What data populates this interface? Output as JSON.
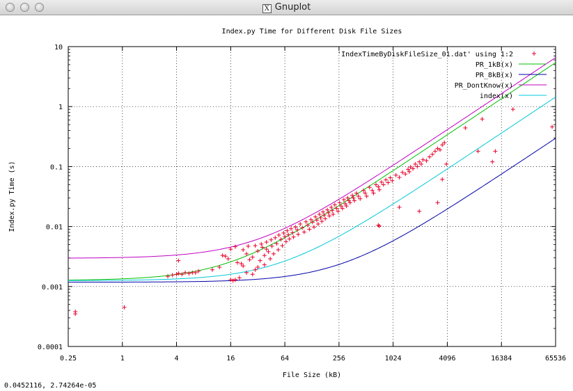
{
  "window": {
    "title": "Gnuplot",
    "icon": "x11-icon"
  },
  "status_readout": "0.0452116,  2.74264e-05",
  "chart_data": {
    "type": "scatter",
    "title": "Index.py Time for Different Disk File Sizes",
    "xlabel": "File Size (kB)",
    "ylabel": "Index.py Time (s)",
    "xscale": "log",
    "yscale": "log",
    "xlim": [
      0.25,
      65536
    ],
    "ylim": [
      0.0001,
      10
    ],
    "xticks": [
      "0.25",
      "1",
      "4",
      "16",
      "64",
      "256",
      "1024",
      "4096",
      "16384",
      "65536"
    ],
    "yticks": [
      "0.0001",
      "0.001",
      "0.01",
      "0.1",
      "1",
      "10"
    ],
    "grid": true,
    "legend_position": "top-right",
    "series": [
      {
        "name": "'IndexTimeByDiskFileSize_01.dat' using 1:2",
        "kind": "points",
        "color": "#e8002a",
        "points": [
          [
            0.3,
            0.00035
          ],
          [
            0.3,
            0.00038
          ],
          [
            1.05,
            0.00045
          ],
          [
            3.2,
            0.00148
          ],
          [
            3.6,
            0.00155
          ],
          [
            4.0,
            0.0016
          ],
          [
            4.2,
            0.00165
          ],
          [
            4.6,
            0.0016
          ],
          [
            5.0,
            0.0017
          ],
          [
            5.5,
            0.00165
          ],
          [
            6.0,
            0.0017
          ],
          [
            6.5,
            0.0017
          ],
          [
            7.0,
            0.0018
          ],
          [
            4.2,
            0.0027
          ],
          [
            10,
            0.0019
          ],
          [
            12,
            0.0021
          ],
          [
            13,
            0.0033
          ],
          [
            14,
            0.0032
          ],
          [
            15,
            0.0029
          ],
          [
            16,
            0.0042
          ],
          [
            16,
            0.0013
          ],
          [
            17,
            0.00125
          ],
          [
            18,
            0.0013
          ],
          [
            18,
            0.0046
          ],
          [
            19,
            0.0025
          ],
          [
            20,
            0.0014
          ],
          [
            21,
            0.0024
          ],
          [
            22,
            0.0022
          ],
          [
            22,
            0.0041
          ],
          [
            24,
            0.0017
          ],
          [
            24,
            0.0035
          ],
          [
            25,
            0.0047
          ],
          [
            26,
            0.0028
          ],
          [
            28,
            0.0016
          ],
          [
            28,
            0.0031
          ],
          [
            30,
            0.0048
          ],
          [
            30,
            0.0019
          ],
          [
            32,
            0.0021
          ],
          [
            32,
            0.0039
          ],
          [
            34,
            0.0027
          ],
          [
            35,
            0.0051
          ],
          [
            36,
            0.0045
          ],
          [
            38,
            0.0023
          ],
          [
            38,
            0.0033
          ],
          [
            40,
            0.0055
          ],
          [
            40,
            0.0042
          ],
          [
            42,
            0.0038
          ],
          [
            44,
            0.0029
          ],
          [
            45,
            0.006
          ],
          [
            46,
            0.0047
          ],
          [
            48,
            0.0035
          ],
          [
            50,
            0.0065
          ],
          [
            52,
            0.0052
          ],
          [
            54,
            0.0041
          ],
          [
            55,
            0.0072
          ],
          [
            58,
            0.0061
          ],
          [
            60,
            0.0048
          ],
          [
            62,
            0.0078
          ],
          [
            64,
            0.0068
          ],
          [
            66,
            0.0056
          ],
          [
            68,
            0.0085
          ],
          [
            70,
            0.0073
          ],
          [
            72,
            0.0062
          ],
          [
            75,
            0.0092
          ],
          [
            78,
            0.0079
          ],
          [
            80,
            0.0067
          ],
          [
            84,
            0.0098
          ],
          [
            88,
            0.0088
          ],
          [
            90,
            0.0074
          ],
          [
            95,
            0.011
          ],
          [
            100,
            0.0095
          ],
          [
            105,
            0.0081
          ],
          [
            110,
            0.012
          ],
          [
            115,
            0.0105
          ],
          [
            120,
            0.009
          ],
          [
            125,
            0.013
          ],
          [
            130,
            0.0118
          ],
          [
            135,
            0.0098
          ],
          [
            140,
            0.0145
          ],
          [
            145,
            0.0128
          ],
          [
            150,
            0.011
          ],
          [
            155,
            0.016
          ],
          [
            160,
            0.014
          ],
          [
            165,
            0.0122
          ],
          [
            170,
            0.0175
          ],
          [
            175,
            0.0155
          ],
          [
            180,
            0.0135
          ],
          [
            190,
            0.019
          ],
          [
            195,
            0.017
          ],
          [
            200,
            0.015
          ],
          [
            210,
            0.021
          ],
          [
            215,
            0.0185
          ],
          [
            220,
            0.016
          ],
          [
            230,
            0.023
          ],
          [
            240,
            0.02
          ],
          [
            250,
            0.018
          ],
          [
            260,
            0.025
          ],
          [
            270,
            0.022
          ],
          [
            280,
            0.02
          ],
          [
            290,
            0.028
          ],
          [
            300,
            0.024
          ],
          [
            310,
            0.022
          ],
          [
            320,
            0.03
          ],
          [
            330,
            0.027
          ],
          [
            340,
            0.025
          ],
          [
            360,
            0.033
          ],
          [
            370,
            0.03
          ],
          [
            380,
            0.027
          ],
          [
            400,
            0.036
          ],
          [
            420,
            0.032
          ],
          [
            440,
            0.029
          ],
          [
            480,
            0.04
          ],
          [
            500,
            0.036
          ],
          [
            520,
            0.032
          ],
          [
            560,
            0.045
          ],
          [
            600,
            0.04
          ],
          [
            620,
            0.036
          ],
          [
            660,
            0.05
          ],
          [
            700,
            0.046
          ],
          [
            720,
            0.041
          ],
          [
            760,
            0.055
          ],
          [
            800,
            0.05
          ],
          [
            850,
            0.06
          ],
          [
            900,
            0.054
          ],
          [
            950,
            0.065
          ],
          [
            1000,
            0.058
          ],
          [
            1100,
            0.072
          ],
          [
            1200,
            0.066
          ],
          [
            1300,
            0.08
          ],
          [
            1400,
            0.075
          ],
          [
            1500,
            0.09
          ],
          [
            1550,
            0.082
          ],
          [
            1600,
            0.098
          ],
          [
            1700,
            0.092
          ],
          [
            1800,
            0.11
          ],
          [
            1900,
            0.1
          ],
          [
            2000,
            0.12
          ],
          [
            2100,
            0.11
          ],
          [
            2200,
            0.13
          ],
          [
            2400,
            0.125
          ],
          [
            2600,
            0.145
          ],
          [
            2800,
            0.16
          ],
          [
            3000,
            0.18
          ],
          [
            3200,
            0.2
          ],
          [
            3400,
            0.19
          ],
          [
            3600,
            0.23
          ],
          [
            3800,
            0.25
          ],
          [
            700,
            0.0105
          ],
          [
            720,
            0.0102
          ],
          [
            1200,
            0.021
          ],
          [
            2000,
            0.018
          ],
          [
            3200,
            0.025
          ],
          [
            3600,
            0.061
          ],
          [
            4000,
            0.11
          ],
          [
            6500,
            0.44
          ],
          [
            9000,
            0.18
          ],
          [
            10000,
            0.62
          ],
          [
            13000,
            0.12
          ],
          [
            14000,
            0.18
          ],
          [
            22000,
            0.9
          ],
          [
            60000,
            0.46
          ]
        ]
      },
      {
        "name": "PR_1kB(x)",
        "kind": "line",
        "color": "#00c000",
        "formula": [
          0.00126,
          8.25e-05,
          1.0
        ]
      },
      {
        "name": "PR_8kB(x)",
        "kind": "line",
        "color": "#0000a8",
        "formula": [
          0.00118,
          4.5e-06,
          1.0
        ]
      },
      {
        "name": "PR_DontKnow(x)",
        "kind": "line",
        "color": "#c000c0",
        "formula": [
          0.00295,
          0.0001,
          1.0
        ]
      },
      {
        "name": "index(x)",
        "kind": "line",
        "color": "#00c8d8",
        "formula": [
          0.00125,
          2.2e-05,
          1.0
        ]
      }
    ]
  }
}
